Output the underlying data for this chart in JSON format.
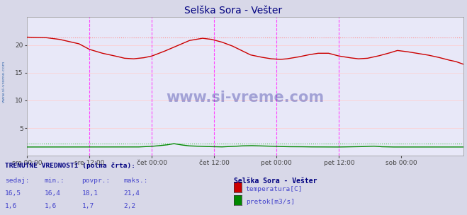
{
  "title": "Selška Sora - Vešter",
  "title_color": "#000080",
  "title_fontsize": 10,
  "bg_color": "#d8d8e8",
  "plot_bg_color": "#e8e8f8",
  "watermark_text": "www.si-vreme.com",
  "watermark_color": "#3030a0",
  "watermark_alpha": 0.35,
  "sidebar_text": "www.si-vreme.com",
  "sidebar_color": "#3366aa",
  "xlim": [
    0,
    336
  ],
  "ylim": [
    0,
    25
  ],
  "yticks": [
    5,
    10,
    15,
    20
  ],
  "xtick_labels": [
    "sre 00:00",
    "sre 12:00",
    "čet 00:00",
    "čet 12:00",
    "pet 00:00",
    "pet 12:00",
    "sob 00:00"
  ],
  "xtick_positions": [
    0,
    48,
    96,
    144,
    192,
    240,
    288
  ],
  "vline_positions": [
    48,
    96,
    144,
    192,
    240
  ],
  "vline_color": "#ff44ff",
  "grid_color": "#ffcccc",
  "grid_hcolor": "#ffcccc",
  "temp_color": "#cc0000",
  "flow_color": "#008800",
  "temp_max_line_color": "#ff8888",
  "flow_max_line_color": "#44cc44",
  "temp_max": 21.4,
  "flow_max_display": 2.2,
  "flow_scale": 1.0,
  "legend_title": "Selška Sora - Vešter",
  "legend_title_color": "#000080",
  "legend_label1": "temperatura[C]",
  "legend_label2": "pretok[m3/s]",
  "legend_color1": "#cc0000",
  "legend_color2": "#008800",
  "bottom_label": "TRENUTNE VREDNOSTI (polna črta):",
  "bottom_color": "#000080",
  "col_headers": [
    "sedaj:",
    "min.:",
    "povpr.:",
    "maks.:"
  ],
  "col_vals_temp": [
    "16,5",
    "16,4",
    "18,1",
    "21,4"
  ],
  "col_vals_flow": [
    "1,6",
    "1,6",
    "1,7",
    "2,2"
  ],
  "col_color": "#4444cc",
  "num_points": 337,
  "temp_keypoints": [
    [
      0,
      21.4
    ],
    [
      15,
      21.3
    ],
    [
      25,
      21.0
    ],
    [
      40,
      20.2
    ],
    [
      48,
      19.2
    ],
    [
      58,
      18.5
    ],
    [
      68,
      18.0
    ],
    [
      75,
      17.6
    ],
    [
      82,
      17.5
    ],
    [
      90,
      17.7
    ],
    [
      96,
      18.0
    ],
    [
      105,
      18.8
    ],
    [
      115,
      19.8
    ],
    [
      125,
      20.8
    ],
    [
      135,
      21.2
    ],
    [
      142,
      21.0
    ],
    [
      150,
      20.5
    ],
    [
      158,
      19.8
    ],
    [
      165,
      19.0
    ],
    [
      172,
      18.2
    ],
    [
      180,
      17.8
    ],
    [
      188,
      17.5
    ],
    [
      195,
      17.4
    ],
    [
      200,
      17.5
    ],
    [
      208,
      17.8
    ],
    [
      216,
      18.2
    ],
    [
      224,
      18.5
    ],
    [
      232,
      18.5
    ],
    [
      240,
      18.0
    ],
    [
      248,
      17.7
    ],
    [
      255,
      17.5
    ],
    [
      262,
      17.6
    ],
    [
      270,
      18.0
    ],
    [
      278,
      18.5
    ],
    [
      285,
      19.0
    ],
    [
      292,
      18.8
    ],
    [
      300,
      18.5
    ],
    [
      308,
      18.2
    ],
    [
      316,
      17.8
    ],
    [
      324,
      17.3
    ],
    [
      330,
      17.0
    ],
    [
      336,
      16.5
    ]
  ],
  "flow_keypoints": [
    [
      0,
      1.6
    ],
    [
      48,
      1.6
    ],
    [
      85,
      1.6
    ],
    [
      90,
      1.65
    ],
    [
      95,
      1.7
    ],
    [
      100,
      1.8
    ],
    [
      108,
      2.0
    ],
    [
      113,
      2.2
    ],
    [
      118,
      2.0
    ],
    [
      125,
      1.8
    ],
    [
      135,
      1.7
    ],
    [
      144,
      1.65
    ],
    [
      150,
      1.62
    ],
    [
      158,
      1.7
    ],
    [
      165,
      1.8
    ],
    [
      172,
      1.85
    ],
    [
      180,
      1.8
    ],
    [
      188,
      1.75
    ],
    [
      192,
      1.7
    ],
    [
      200,
      1.65
    ],
    [
      210,
      1.65
    ],
    [
      216,
      1.62
    ],
    [
      230,
      1.6
    ],
    [
      240,
      1.6
    ],
    [
      255,
      1.65
    ],
    [
      262,
      1.7
    ],
    [
      267,
      1.75
    ],
    [
      272,
      1.65
    ],
    [
      280,
      1.6
    ],
    [
      295,
      1.6
    ],
    [
      310,
      1.6
    ],
    [
      336,
      1.6
    ]
  ]
}
